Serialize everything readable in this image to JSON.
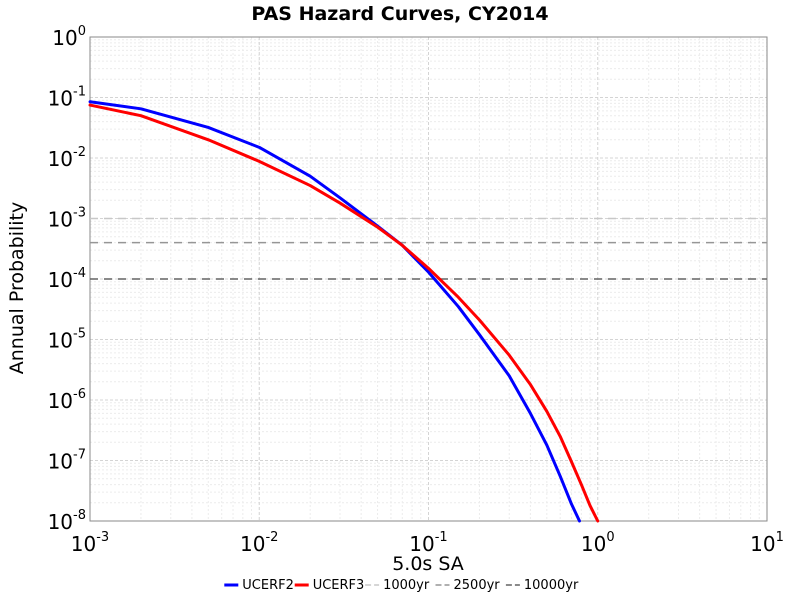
{
  "chart_data": {
    "type": "line",
    "title": "PAS Hazard Curves, CY2014",
    "xlabel": "5.0s SA",
    "ylabel": "Annual Probability",
    "x_scale": "log",
    "y_scale": "log",
    "xlim": [
      0.001,
      10
    ],
    "ylim": [
      1e-08,
      1
    ],
    "x_ticks": [
      {
        "base": "10",
        "exp": "-3"
      },
      {
        "base": "10",
        "exp": "-2"
      },
      {
        "base": "10",
        "exp": "-1"
      },
      {
        "base": "10",
        "exp": "0"
      },
      {
        "base": "10",
        "exp": "1"
      }
    ],
    "y_ticks": [
      {
        "base": "10",
        "exp": "0"
      },
      {
        "base": "10",
        "exp": "-1"
      },
      {
        "base": "10",
        "exp": "-2"
      },
      {
        "base": "10",
        "exp": "-3"
      },
      {
        "base": "10",
        "exp": "-4"
      },
      {
        "base": "10",
        "exp": "-5"
      },
      {
        "base": "10",
        "exp": "-6"
      },
      {
        "base": "10",
        "exp": "-7"
      },
      {
        "base": "10",
        "exp": "-8"
      }
    ],
    "grid": true,
    "legend_position": "bottom",
    "series": [
      {
        "name": "UCERF2",
        "color": "#0000ff",
        "style": "solid",
        "x": [
          0.001,
          0.002,
          0.005,
          0.01,
          0.02,
          0.03,
          0.05,
          0.07,
          0.1,
          0.15,
          0.2,
          0.3,
          0.4,
          0.5,
          0.6,
          0.7,
          0.78
        ],
        "y": [
          0.085,
          0.065,
          0.032,
          0.015,
          0.005,
          0.0022,
          0.00075,
          0.00036,
          0.00013,
          3.5e-05,
          1.2e-05,
          2.5e-06,
          6e-07,
          1.8e-07,
          5.5e-08,
          1.9e-08,
          1e-08
        ]
      },
      {
        "name": "UCERF3",
        "color": "#ff0000",
        "style": "solid",
        "x": [
          0.001,
          0.002,
          0.005,
          0.01,
          0.02,
          0.03,
          0.05,
          0.07,
          0.1,
          0.15,
          0.2,
          0.3,
          0.4,
          0.5,
          0.6,
          0.7,
          0.8,
          0.9,
          1.0
        ],
        "y": [
          0.075,
          0.05,
          0.02,
          0.0088,
          0.0035,
          0.0018,
          0.00072,
          0.00036,
          0.00015,
          5e-05,
          2.1e-05,
          5.5e-06,
          1.8e-06,
          6.5e-07,
          2.5e-07,
          9.5e-08,
          4e-08,
          1.8e-08,
          8e-09
        ]
      },
      {
        "name": "1000yr",
        "color": "#c8c8c8",
        "style": "dashed",
        "x": [
          0.001,
          10
        ],
        "y": [
          0.001,
          0.001
        ]
      },
      {
        "name": "2500yr",
        "color": "#969696",
        "style": "dashed",
        "x": [
          0.001,
          10
        ],
        "y": [
          0.0004,
          0.0004
        ]
      },
      {
        "name": "10000yr",
        "color": "#646464",
        "style": "dashed",
        "x": [
          0.001,
          10
        ],
        "y": [
          0.0001,
          0.0001
        ]
      }
    ]
  }
}
